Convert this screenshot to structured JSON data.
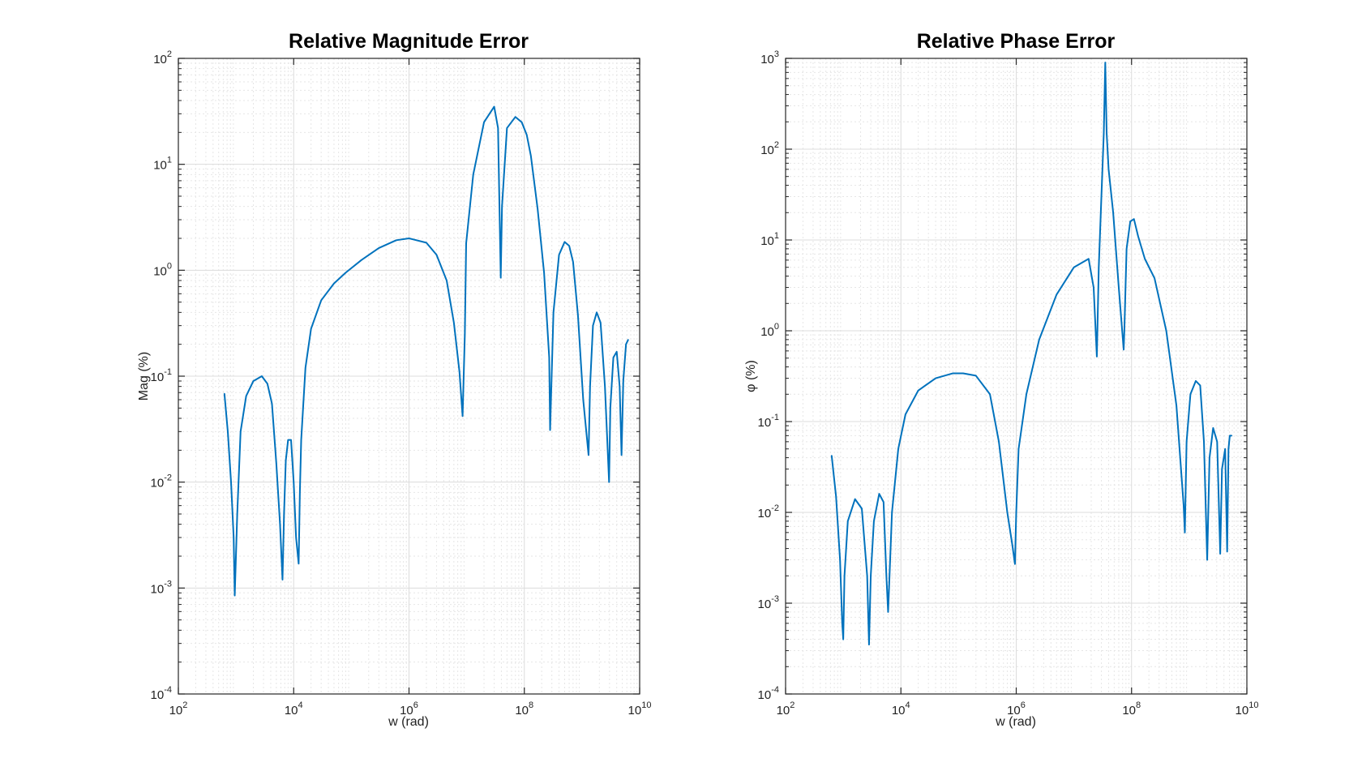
{
  "chart_data": [
    {
      "type": "line",
      "title": "Relative Magnitude Error",
      "xlabel": "w (rad)",
      "ylabel": "Mag (%)",
      "xscale": "log",
      "yscale": "log",
      "xlim": [
        100,
        10000000000
      ],
      "ylim": [
        0.0001,
        100
      ],
      "xticks": [
        {
          "base": "10",
          "exp": "2"
        },
        {
          "base": "10",
          "exp": "4"
        },
        {
          "base": "10",
          "exp": "6"
        },
        {
          "base": "10",
          "exp": "8"
        },
        {
          "base": "10",
          "exp": "10"
        }
      ],
      "yticks": [
        {
          "base": "10",
          "exp": "-4"
        },
        {
          "base": "10",
          "exp": "-3"
        },
        {
          "base": "10",
          "exp": "-2"
        },
        {
          "base": "10",
          "exp": "-1"
        },
        {
          "base": "10",
          "exp": "0"
        },
        {
          "base": "10",
          "exp": "1"
        },
        {
          "base": "10",
          "exp": "2"
        }
      ],
      "grid": true,
      "minor_grid": true,
      "color": "#0072BD",
      "series": [
        {
          "x": [
            630,
            720,
            820,
            910,
            950,
            1050,
            1200,
            1500,
            2000,
            2800,
            3500,
            4200,
            5000,
            5800,
            6400,
            6800,
            7300,
            8000,
            9000,
            10000,
            11000,
            12200,
            12800,
            13500,
            16000,
            20000,
            30000,
            50000,
            80000,
            150000,
            300000,
            600000,
            1000000,
            2000000,
            3000000,
            4500000,
            6000000,
            7500000,
            8500000,
            9300000,
            9800000,
            13000000,
            20000000,
            30000000,
            35000000,
            39000000,
            41000000,
            50000000,
            70000000,
            90000000,
            110000000,
            130000000,
            170000000,
            220000000,
            270000000,
            280000000,
            320000000,
            400000000,
            500000000,
            600000000,
            700000000,
            850000000,
            1050000000,
            1300000000,
            1380000000,
            1550000000,
            1800000000,
            2100000000,
            2500000000,
            2950000000,
            3100000000,
            3500000000,
            4000000000,
            4500000000,
            4850000000,
            5200000000,
            5800000000,
            6300000000
          ],
          "y": [
            0.068,
            0.03,
            0.01,
            0.003,
            0.00085,
            0.005,
            0.03,
            0.065,
            0.09,
            0.1,
            0.085,
            0.055,
            0.015,
            0.004,
            0.0012,
            0.005,
            0.016,
            0.025,
            0.025,
            0.01,
            0.003,
            0.0017,
            0.008,
            0.025,
            0.12,
            0.28,
            0.52,
            0.75,
            0.95,
            1.25,
            1.62,
            1.92,
            2.0,
            1.82,
            1.4,
            0.8,
            0.32,
            0.11,
            0.042,
            0.25,
            1.8,
            8.0,
            25.0,
            35.0,
            22.0,
            0.85,
            4.0,
            22.0,
            28.0,
            25.0,
            19.0,
            12.0,
            3.8,
            0.95,
            0.15,
            0.031,
            0.4,
            1.4,
            1.85,
            1.7,
            1.2,
            0.38,
            0.06,
            0.018,
            0.08,
            0.3,
            0.4,
            0.32,
            0.08,
            0.01,
            0.05,
            0.15,
            0.17,
            0.08,
            0.018,
            0.09,
            0.2,
            0.22
          ]
        }
      ]
    },
    {
      "type": "line",
      "title": "Relative Phase Error",
      "xlabel": "w (rad)",
      "ylabel": "φ (%)",
      "xscale": "log",
      "yscale": "log",
      "xlim": [
        100,
        10000000000
      ],
      "ylim": [
        0.0001,
        1000
      ],
      "xticks": [
        {
          "base": "10",
          "exp": "2"
        },
        {
          "base": "10",
          "exp": "4"
        },
        {
          "base": "10",
          "exp": "6"
        },
        {
          "base": "10",
          "exp": "8"
        },
        {
          "base": "10",
          "exp": "10"
        }
      ],
      "yticks": [
        {
          "base": "10",
          "exp": "-4"
        },
        {
          "base": "10",
          "exp": "-3"
        },
        {
          "base": "10",
          "exp": "-2"
        },
        {
          "base": "10",
          "exp": "-1"
        },
        {
          "base": "10",
          "exp": "0"
        },
        {
          "base": "10",
          "exp": "1"
        },
        {
          "base": "10",
          "exp": "2"
        },
        {
          "base": "10",
          "exp": "3"
        }
      ],
      "grid": true,
      "minor_grid": true,
      "color": "#0072BD",
      "series": [
        {
          "x": [
            630,
            750,
            880,
            960,
            1000,
            1050,
            1200,
            1600,
            2100,
            2600,
            2800,
            3000,
            3400,
            4200,
            5000,
            5600,
            6000,
            7000,
            9000,
            12000,
            20000,
            40000,
            80000,
            120000,
            200000,
            350000,
            500000,
            700000,
            850000,
            950000,
            1000000,
            1100000,
            1500000,
            2500000,
            5000000,
            10000000,
            18000000,
            22000000,
            25000000,
            27000000,
            30000000,
            33000000,
            35000000,
            37000000,
            40000000,
            48000000,
            60000000,
            73000000,
            75000000,
            82000000,
            95000000,
            110000000,
            130000000,
            170000000,
            250000000,
            400000000,
            600000000,
            800000000,
            840000000,
            900000000,
            1050000000,
            1300000000,
            1550000000,
            1800000000,
            2050000000,
            2250000000,
            2600000000,
            3050000000,
            3450000000,
            3700000000,
            4200000000,
            4550000000,
            4800000000,
            5050000000,
            5400000000
          ],
          "y": [
            0.042,
            0.015,
            0.003,
            0.0006,
            0.0004,
            0.002,
            0.008,
            0.014,
            0.011,
            0.002,
            0.00035,
            0.002,
            0.008,
            0.016,
            0.013,
            0.002,
            0.0008,
            0.01,
            0.05,
            0.12,
            0.22,
            0.3,
            0.34,
            0.34,
            0.32,
            0.2,
            0.06,
            0.01,
            0.0045,
            0.0027,
            0.01,
            0.05,
            0.2,
            0.8,
            2.5,
            5.0,
            6.2,
            3.0,
            0.52,
            5.0,
            30.0,
            150.0,
            900.0,
            150.0,
            60.0,
            20.0,
            3.0,
            0.62,
            1.0,
            8.0,
            16.0,
            17.0,
            11.0,
            6.2,
            3.8,
            1.0,
            0.15,
            0.012,
            0.006,
            0.06,
            0.2,
            0.28,
            0.25,
            0.06,
            0.003,
            0.04,
            0.085,
            0.06,
            0.0035,
            0.03,
            0.05,
            0.0037,
            0.05,
            0.07,
            0.07
          ]
        }
      ]
    }
  ]
}
